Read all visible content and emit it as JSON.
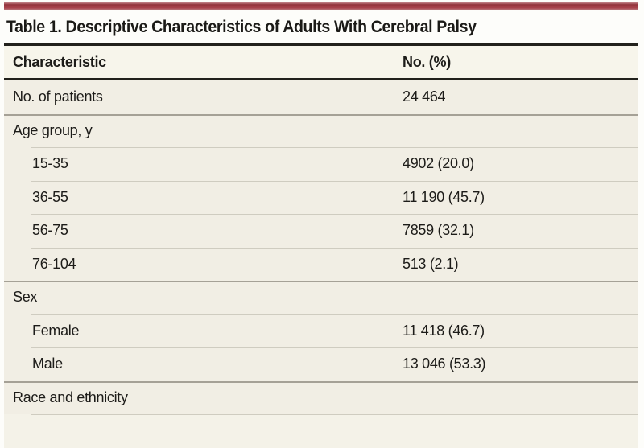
{
  "colors": {
    "accent_red_bar": "#a8434b",
    "rule_dark": "#22211c",
    "row_background": "#f1eee4",
    "header_background": "#f7f5eb"
  },
  "title": "Table 1. Descriptive Characteristics of Adults With Cerebral Palsy",
  "table": {
    "columns": [
      "Characteristic",
      "No. (%)"
    ],
    "rows": [
      {
        "label": "No. of patients",
        "value": "24 464",
        "type": "data",
        "level": 0
      },
      {
        "label": "Age group, y",
        "value": "",
        "type": "section",
        "level": 0
      },
      {
        "label": "15-35",
        "value": "4902 (20.0)",
        "type": "data",
        "level": 1
      },
      {
        "label": "36-55",
        "value": "11 190 (45.7)",
        "type": "data",
        "level": 1
      },
      {
        "label": "56-75",
        "value": "7859 (32.1)",
        "type": "data",
        "level": 1
      },
      {
        "label": "76-104",
        "value": "513 (2.1)",
        "type": "data",
        "level": 1
      },
      {
        "label": "Sex",
        "value": "",
        "type": "section",
        "level": 0
      },
      {
        "label": "Female",
        "value": "11 418 (46.7)",
        "type": "data",
        "level": 1
      },
      {
        "label": "Male",
        "value": "13 046 (53.3)",
        "type": "data",
        "level": 1
      },
      {
        "label": "Race and ethnicity",
        "value": "",
        "type": "section",
        "level": 0
      }
    ]
  }
}
